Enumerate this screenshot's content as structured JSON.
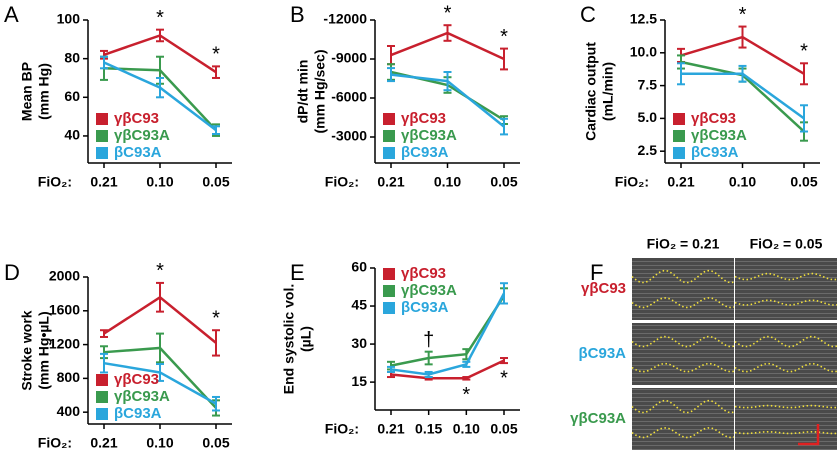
{
  "chart_data": [
    {
      "type": "line",
      "label": "A",
      "ylabel": [
        "Mean BP",
        "(mm Hg)"
      ],
      "xlabel": "FiO₂:",
      "categories": [
        "0.21",
        "0.10",
        "0.05"
      ],
      "ylim": [
        26,
        100
      ],
      "yticks": [
        40,
        60,
        80,
        100
      ],
      "legend": "lower left",
      "series": [
        {
          "name": "γβC93",
          "color": "#c8202e",
          "values": [
            82,
            92,
            73
          ],
          "errors": [
            2,
            3,
            3
          ]
        },
        {
          "name": "γβC93A",
          "color": "#3a9a4e",
          "values": [
            75,
            74,
            43
          ],
          "errors": [
            6,
            7,
            3
          ]
        },
        {
          "name": "βC93A",
          "color": "#2aa6dc",
          "values": [
            78,
            65,
            43
          ],
          "errors": [
            3,
            5,
            2
          ]
        }
      ],
      "annotations": [
        {
          "text": "*",
          "x": "0.10"
        },
        {
          "text": "*",
          "x": "0.05"
        }
      ]
    },
    {
      "type": "line",
      "label": "B",
      "ylabel": [
        "dP/dt min",
        "(mm Hg/sec)"
      ],
      "xlabel": "FiO₂:",
      "categories": [
        "0.21",
        "0.10",
        "0.05"
      ],
      "ylim": [
        -1000,
        -12000
      ],
      "yticks": [
        -12000,
        -9000,
        -6000,
        -3000
      ],
      "legend": "lower left",
      "series": [
        {
          "name": "γβC93",
          "color": "#c8202e",
          "values": [
            -9300,
            -11000,
            -9000
          ],
          "errors": [
            700,
            600,
            800
          ]
        },
        {
          "name": "γβC93A",
          "color": "#3a9a4e",
          "values": [
            -8000,
            -7000,
            -4300
          ],
          "errors": [
            600,
            600,
            300
          ]
        },
        {
          "name": "βC93A",
          "color": "#2aa6dc",
          "values": [
            -7800,
            -7300,
            -3800
          ],
          "errors": [
            500,
            700,
            600
          ]
        }
      ],
      "annotations": [
        {
          "text": "*",
          "x": "0.10"
        },
        {
          "text": "*",
          "x": "0.05"
        }
      ]
    },
    {
      "type": "line",
      "label": "C",
      "ylabel": [
        "Cardiac output",
        "(mL/min)"
      ],
      "xlabel": "FiO₂:",
      "categories": [
        "0.21",
        "0.10",
        "0.05"
      ],
      "ylim": [
        1.6,
        12.5
      ],
      "yticks": [
        2.5,
        {
          "value": 5,
          "label": "5.0"
        },
        7.5,
        {
          "value": 10,
          "label": "10.0"
        },
        12.5
      ],
      "legend": "lower left",
      "series": [
        {
          "name": "γβC93",
          "color": "#c8202e",
          "values": [
            9.8,
            11.2,
            8.4
          ],
          "errors": [
            0.5,
            0.8,
            0.8
          ]
        },
        {
          "name": "γβC93A",
          "color": "#3a9a4e",
          "values": [
            9.3,
            8.3,
            4.0
          ],
          "errors": [
            0.5,
            0.5,
            0.7
          ]
        },
        {
          "name": "βC93A",
          "color": "#2aa6dc",
          "values": [
            8.4,
            8.4,
            5.0
          ],
          "errors": [
            0.8,
            0.6,
            1.0
          ]
        }
      ],
      "annotations": [
        {
          "text": "*",
          "x": "0.10"
        },
        {
          "text": "*",
          "x": "0.05"
        }
      ]
    },
    {
      "type": "line",
      "label": "D",
      "ylabel": [
        "Stroke work",
        "(mm Hg•µL)"
      ],
      "xlabel": "FiO₂:",
      "categories": [
        "0.21",
        "0.10",
        "0.05"
      ],
      "ylim": [
        260,
        2000
      ],
      "yticks": [
        400,
        800,
        1200,
        1600,
        2000
      ],
      "legend": "lower left",
      "series": [
        {
          "name": "γβC93",
          "color": "#c8202e",
          "values": [
            1330,
            1760,
            1220
          ],
          "errors": [
            40,
            170,
            150
          ]
        },
        {
          "name": "γβC93A",
          "color": "#3a9a4e",
          "values": [
            1110,
            1160,
            450
          ],
          "errors": [
            70,
            170,
            90
          ]
        },
        {
          "name": "βC93A",
          "color": "#2aa6dc",
          "values": [
            980,
            870,
            500
          ],
          "errors": [
            110,
            100,
            80
          ]
        }
      ],
      "annotations": [
        {
          "text": "*",
          "x": "0.10"
        },
        {
          "text": "*",
          "x": "0.05"
        }
      ]
    },
    {
      "type": "line",
      "label": "E",
      "ylabel": [
        "End systolic vol.",
        "(µL)"
      ],
      "xlabel": "FiO₂:",
      "categories": [
        "0.21",
        "0.15",
        "0.10",
        "0.05"
      ],
      "ylim": [
        4,
        60
      ],
      "yticks": [
        15,
        30,
        45,
        60
      ],
      "legend": "upper left",
      "series": [
        {
          "name": "γβC93",
          "color": "#c8202e",
          "values": [
            18,
            16.5,
            16.5,
            23.5
          ],
          "errors": [
            1,
            0.5,
            0.5,
            1
          ]
        },
        {
          "name": "γβC93A",
          "color": "#3a9a4e",
          "values": [
            21.5,
            24.5,
            26,
            49
          ],
          "errors": [
            1.5,
            2.5,
            2,
            3
          ]
        },
        {
          "name": "βC93A",
          "color": "#2aa6dc",
          "values": [
            20,
            18,
            22,
            50
          ],
          "errors": [
            1,
            1,
            1,
            4
          ]
        }
      ],
      "annotations": [
        {
          "text": "†",
          "x": "0.15"
        },
        {
          "text": "*",
          "x": "0.10"
        },
        {
          "text": "*",
          "x": "0.05"
        }
      ]
    }
  ],
  "image_panel": {
    "label": "F",
    "columns": [
      "FiO₂ = 0.21",
      "FiO₂ = 0.05"
    ],
    "rows": [
      {
        "name": "γβC93",
        "color": "#c8202e"
      },
      {
        "name": "βC93A",
        "color": "#2aa6dc"
      },
      {
        "name": "γβC93A",
        "color": "#3a9a4e"
      }
    ]
  }
}
